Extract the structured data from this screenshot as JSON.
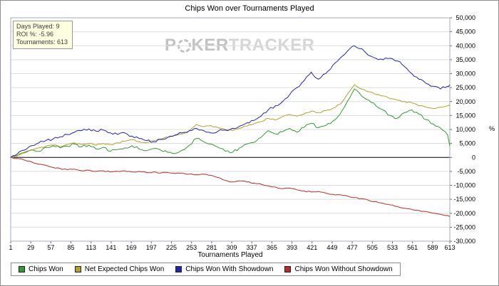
{
  "info_box": {
    "lines": [
      "Days Played: 9",
      "ROI %: -5.96",
      "Tournaments: 613"
    ]
  },
  "watermark": {
    "poker_p": "P",
    "poker_ker": "KER",
    "tracker": "TRACKER"
  },
  "y_axis": {
    "unit": "%"
  },
  "chart_data": {
    "type": "line",
    "title": "Chips Won over Tournaments Played",
    "xlabel": "Tournaments Played",
    "ylabel": "",
    "xlim": [
      1,
      613
    ],
    "ylim": [
      -30000,
      50000
    ],
    "y_tick_step": 5000,
    "x_ticks": [
      1,
      29,
      57,
      85,
      113,
      141,
      169,
      197,
      225,
      253,
      281,
      309,
      337,
      365,
      393,
      421,
      449,
      477,
      505,
      533,
      561,
      589,
      613
    ],
    "grid": "horizontal",
    "legend_position": "bottom",
    "x": [
      1,
      10,
      20,
      30,
      40,
      50,
      60,
      70,
      80,
      90,
      100,
      110,
      120,
      130,
      140,
      150,
      160,
      170,
      180,
      190,
      200,
      210,
      220,
      230,
      240,
      250,
      260,
      270,
      280,
      290,
      300,
      310,
      320,
      330,
      340,
      350,
      360,
      370,
      380,
      390,
      400,
      410,
      420,
      430,
      440,
      450,
      460,
      470,
      480,
      490,
      500,
      510,
      520,
      530,
      540,
      550,
      560,
      570,
      580,
      590,
      600,
      610,
      613
    ],
    "series": [
      {
        "name": "Chips Won",
        "color": "#339933",
        "values": [
          0,
          500,
          1800,
          2800,
          2200,
          3600,
          4200,
          3400,
          4000,
          4800,
          3800,
          4400,
          3000,
          3600,
          2200,
          2800,
          3400,
          4200,
          3000,
          2400,
          3200,
          2600,
          1800,
          1400,
          2600,
          4400,
          6800,
          5600,
          4800,
          3600,
          2200,
          1800,
          3400,
          4800,
          5400,
          7200,
          9600,
          8400,
          9200,
          10400,
          9000,
          10800,
          12200,
          10600,
          11400,
          13000,
          15500,
          20000,
          24500,
          22000,
          20500,
          18500,
          17000,
          15000,
          14000,
          16000,
          17000,
          15500,
          13500,
          12000,
          10500,
          8000,
          4000
        ]
      },
      {
        "name": "Net Expected Chips Won",
        "color": "#b2a226",
        "values": [
          0,
          800,
          1600,
          2600,
          3400,
          4000,
          4400,
          3800,
          4600,
          5200,
          4600,
          5000,
          4400,
          5000,
          4600,
          5200,
          5800,
          6400,
          5600,
          5200,
          6000,
          6600,
          7200,
          7800,
          8400,
          9600,
          11800,
          11000,
          11400,
          10600,
          10000,
          9600,
          10400,
          11200,
          12000,
          12800,
          14000,
          13400,
          14600,
          15400,
          14800,
          15600,
          16600,
          16000,
          16800,
          17600,
          19000,
          22500,
          26000,
          24500,
          23500,
          22500,
          22000,
          21000,
          20500,
          20000,
          19500,
          18500,
          18000,
          17500,
          18000,
          18500,
          18500
        ]
      },
      {
        "name": "Chips Won With Showdown",
        "color": "#2424b4",
        "values": [
          0,
          1200,
          2600,
          4200,
          5200,
          6000,
          6600,
          7400,
          8200,
          9000,
          9600,
          10200,
          9400,
          9800,
          8800,
          8200,
          8800,
          7600,
          6800,
          6000,
          5600,
          6400,
          7200,
          8000,
          8800,
          9600,
          10400,
          9600,
          8800,
          9400,
          9800,
          10400,
          11200,
          12400,
          13200,
          14800,
          17000,
          18500,
          20000,
          22500,
          25000,
          27500,
          30500,
          28000,
          30000,
          33000,
          35500,
          38000,
          40000,
          39000,
          36500,
          35500,
          35000,
          35500,
          34500,
          32500,
          30000,
          28000,
          26500,
          25500,
          24500,
          25500,
          26000
        ]
      },
      {
        "name": "Chips Won Without Showdown",
        "color": "#c02828",
        "values": [
          0,
          -400,
          -900,
          -1600,
          -2400,
          -2800,
          -3600,
          -4000,
          -4400,
          -4200,
          -4800,
          -4600,
          -5000,
          -4800,
          -5200,
          -5000,
          -4800,
          -5200,
          -5000,
          -5400,
          -5200,
          -5600,
          -5400,
          -5800,
          -5600,
          -6000,
          -6200,
          -6000,
          -6400,
          -7200,
          -8200,
          -8800,
          -8400,
          -8800,
          -9200,
          -9600,
          -10200,
          -10600,
          -11200,
          -11000,
          -11600,
          -12000,
          -12400,
          -12200,
          -12800,
          -13200,
          -13400,
          -13800,
          -14400,
          -14800,
          -15400,
          -15800,
          -16400,
          -17000,
          -17600,
          -18200,
          -18600,
          -19000,
          -19400,
          -20000,
          -20400,
          -20800,
          -21000
        ]
      }
    ]
  }
}
